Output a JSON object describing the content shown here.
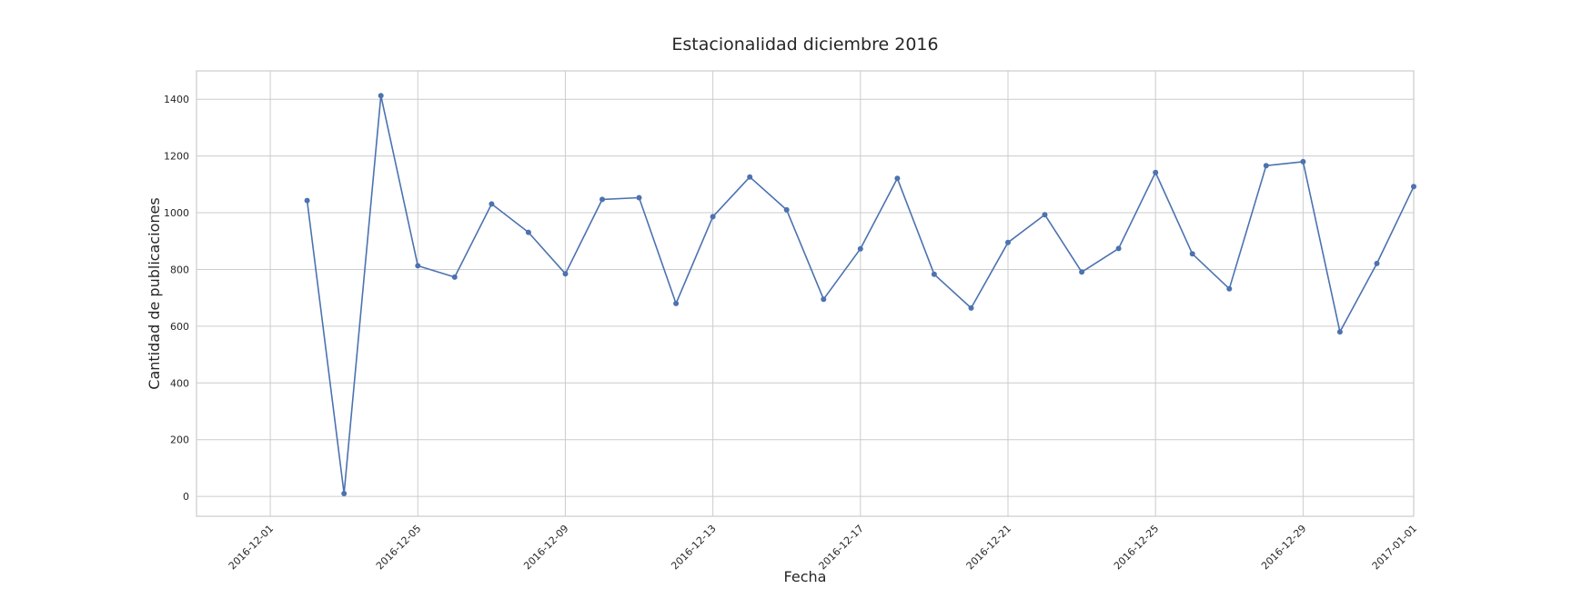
{
  "chart_data": {
    "type": "line",
    "title": "Estacionalidad diciembre 2016",
    "xlabel": "Fecha",
    "ylabel": "Cantidad de publicaciones",
    "xlim": [
      "2016-11-29",
      "2017-01-01"
    ],
    "ylim": [
      -70,
      1500
    ],
    "grid": true,
    "x_ticks": [
      "2016-12-01",
      "2016-12-05",
      "2016-12-09",
      "2016-12-13",
      "2016-12-17",
      "2016-12-21",
      "2016-12-25",
      "2016-12-29",
      "2017-01-01"
    ],
    "y_ticks": [
      0,
      200,
      400,
      600,
      800,
      1000,
      1200,
      1400
    ],
    "colors": {
      "series": "#4c72b0",
      "grid": "#cccccc",
      "text": "#262626"
    },
    "x": [
      "2016-12-02",
      "2016-12-03",
      "2016-12-04",
      "2016-12-05",
      "2016-12-06",
      "2016-12-07",
      "2016-12-08",
      "2016-12-09",
      "2016-12-10",
      "2016-12-11",
      "2016-12-12",
      "2016-12-13",
      "2016-12-14",
      "2016-12-15",
      "2016-12-16",
      "2016-12-17",
      "2016-12-18",
      "2016-12-19",
      "2016-12-20",
      "2016-12-21",
      "2016-12-22",
      "2016-12-23",
      "2016-12-24",
      "2016-12-25",
      "2016-12-26",
      "2016-12-27",
      "2016-12-28",
      "2016-12-29",
      "2016-12-30",
      "2016-12-31",
      "2017-01-01"
    ],
    "values": [
      1043,
      10,
      1413,
      813,
      773,
      1031,
      931,
      785,
      1047,
      1053,
      680,
      986,
      1126,
      1010,
      695,
      873,
      1121,
      783,
      664,
      895,
      993,
      791,
      874,
      1142,
      855,
      732,
      1166,
      1180,
      580,
      821,
      1092
    ]
  }
}
